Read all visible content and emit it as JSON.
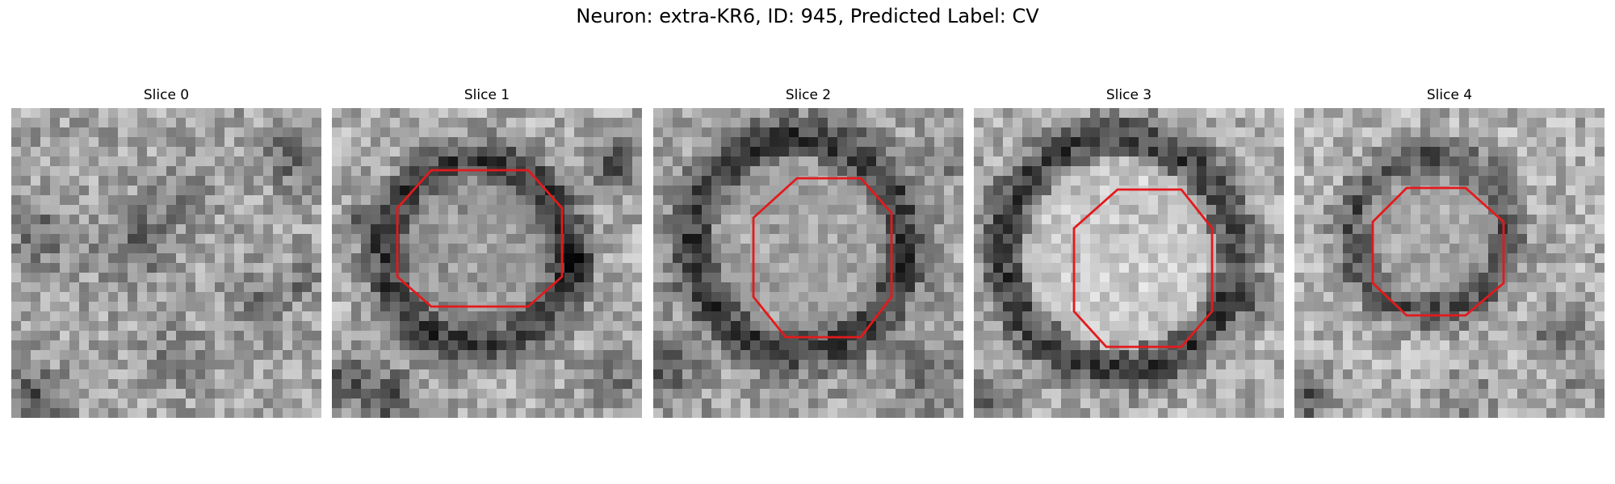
{
  "figure": {
    "title": "Neuron: extra-KR6, ID: 945, Predicted Label: CV"
  },
  "overlay_color": "#e31a1c",
  "panels": [
    {
      "title": "Slice 0",
      "has_contour": false
    },
    {
      "title": "Slice 1",
      "has_contour": true
    },
    {
      "title": "Slice 2",
      "has_contour": true
    },
    {
      "title": "Slice 3",
      "has_contour": true
    },
    {
      "title": "Slice 4",
      "has_contour": true
    }
  ]
}
